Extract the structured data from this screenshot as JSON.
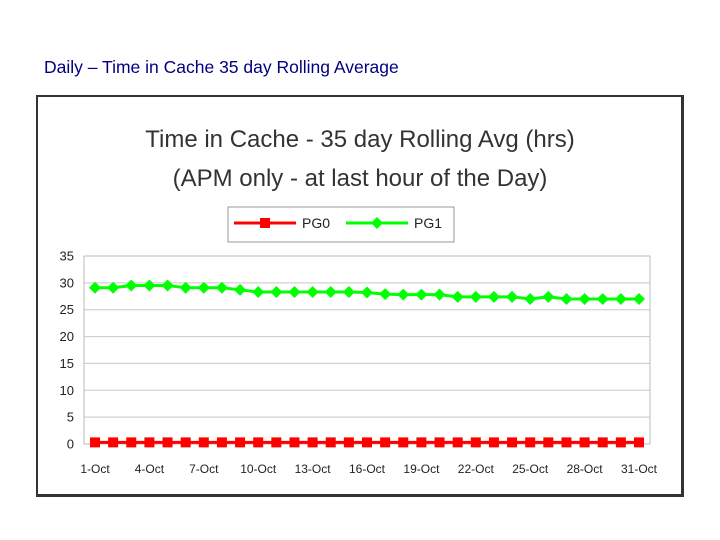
{
  "slide": {
    "title": "Daily – Time in Cache 35 day Rolling Average"
  },
  "chart_data": {
    "type": "line",
    "title": "Time in Cache - 35 day Rolling Avg (hrs)",
    "subtitle": "(APM only - at last hour of the Day)",
    "xlabel": "",
    "ylabel": "",
    "x": [
      "1-Oct",
      "2-Oct",
      "3-Oct",
      "4-Oct",
      "5-Oct",
      "6-Oct",
      "7-Oct",
      "8-Oct",
      "9-Oct",
      "10-Oct",
      "11-Oct",
      "12-Oct",
      "13-Oct",
      "14-Oct",
      "15-Oct",
      "16-Oct",
      "17-Oct",
      "18-Oct",
      "19-Oct",
      "20-Oct",
      "21-Oct",
      "22-Oct",
      "23-Oct",
      "24-Oct",
      "25-Oct",
      "26-Oct",
      "27-Oct",
      "28-Oct",
      "29-Oct",
      "30-Oct",
      "31-Oct"
    ],
    "x_tick_labels": [
      "1-Oct",
      "4-Oct",
      "7-Oct",
      "10-Oct",
      "13-Oct",
      "16-Oct",
      "19-Oct",
      "22-Oct",
      "25-Oct",
      "28-Oct",
      "31-Oct"
    ],
    "y_ticks": [
      0,
      5,
      10,
      15,
      20,
      25,
      30,
      35
    ],
    "ylim": [
      0,
      35
    ],
    "grid": true,
    "legend_position": "top-center",
    "series": [
      {
        "name": "PG0",
        "color": "#ff0000",
        "marker": "square",
        "values": [
          0.3,
          0.3,
          0.3,
          0.3,
          0.3,
          0.3,
          0.3,
          0.3,
          0.3,
          0.3,
          0.3,
          0.3,
          0.3,
          0.3,
          0.3,
          0.3,
          0.3,
          0.3,
          0.3,
          0.3,
          0.3,
          0.3,
          0.3,
          0.3,
          0.3,
          0.3,
          0.3,
          0.3,
          0.3,
          0.3,
          0.3
        ]
      },
      {
        "name": "PG1",
        "color": "#00ff00",
        "marker": "diamond",
        "values": [
          29.1,
          29.1,
          29.5,
          29.5,
          29.5,
          29.1,
          29.1,
          29.1,
          28.7,
          28.3,
          28.3,
          28.3,
          28.3,
          28.3,
          28.3,
          28.2,
          27.9,
          27.8,
          27.8,
          27.8,
          27.4,
          27.4,
          27.4,
          27.4,
          27.0,
          27.4,
          27.0,
          27.0,
          27.0,
          27.0,
          27.0
        ]
      }
    ]
  }
}
